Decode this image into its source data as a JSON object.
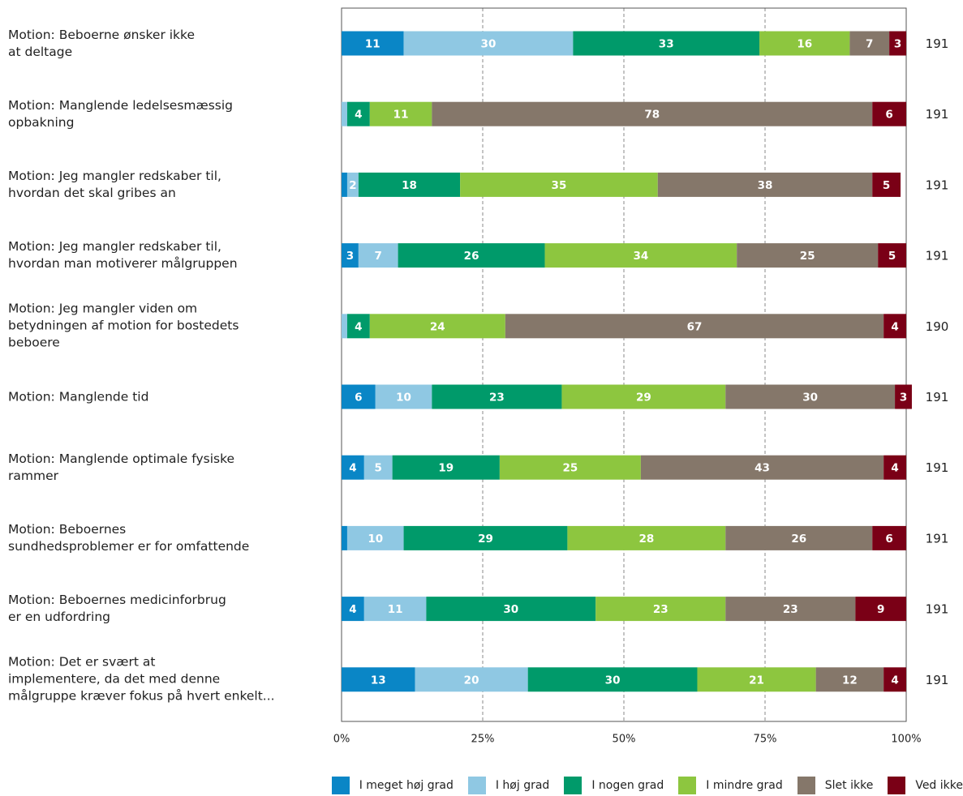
{
  "chart_data": {
    "type": "stacked-bar-horizontal",
    "categories": [
      "Motion: Beboerne ønsker ikke\nat deltage",
      "Motion: Manglende ledelsesmæssig\nopbakning",
      "Motion: Jeg mangler redskaber til,\nhvordan det skal gribes an",
      "Motion: Jeg mangler redskaber til,\nhvordan man motiverer målgruppen",
      "Motion: Jeg mangler viden om\nbetydningen af motion for bostedets\nbeboere",
      "Motion: Manglende tid",
      "Motion: Manglende optimale fysiske\nrammer",
      "Motion: Beboernes\nsundhedsproblemer er for omfattende",
      "Motion: Beboernes medicinforbrug\ner en udfordring",
      "Motion: Det er svært at\nimplementere, da det med denne\nmålgruppe kræver fokus på hvert enkelt..."
    ],
    "series": [
      {
        "name": "I meget høj grad",
        "color": "#0a86c6",
        "values": [
          11,
          0,
          1,
          3,
          0,
          6,
          4,
          1,
          4,
          13
        ]
      },
      {
        "name": "I høj grad",
        "color": "#8fc8e3",
        "values": [
          30,
          1,
          2,
          7,
          1,
          10,
          5,
          10,
          11,
          20
        ]
      },
      {
        "name": "I nogen grad",
        "color": "#009a6a",
        "values": [
          33,
          4,
          18,
          26,
          4,
          23,
          19,
          29,
          30,
          30
        ]
      },
      {
        "name": "I mindre grad",
        "color": "#8dc63f",
        "values": [
          16,
          11,
          35,
          34,
          24,
          29,
          25,
          28,
          23,
          21
        ]
      },
      {
        "name": "Slet ikke",
        "color": "#85776a",
        "values": [
          7,
          78,
          38,
          25,
          67,
          30,
          43,
          26,
          23,
          12
        ]
      },
      {
        "name": "Ved ikke",
        "color": "#7a0016",
        "values": [
          3,
          6,
          5,
          5,
          4,
          3,
          4,
          6,
          9,
          4
        ]
      }
    ],
    "n": [
      191,
      191,
      191,
      191,
      190,
      191,
      191,
      191,
      191,
      191
    ],
    "xlim": [
      0,
      100
    ],
    "xticks": [
      {
        "value": 0,
        "label": "0%"
      },
      {
        "value": 25,
        "label": "25%"
      },
      {
        "value": 50,
        "label": "50%"
      },
      {
        "value": 75,
        "label": "75%"
      },
      {
        "value": 100,
        "label": "100%"
      }
    ],
    "grid": true
  }
}
